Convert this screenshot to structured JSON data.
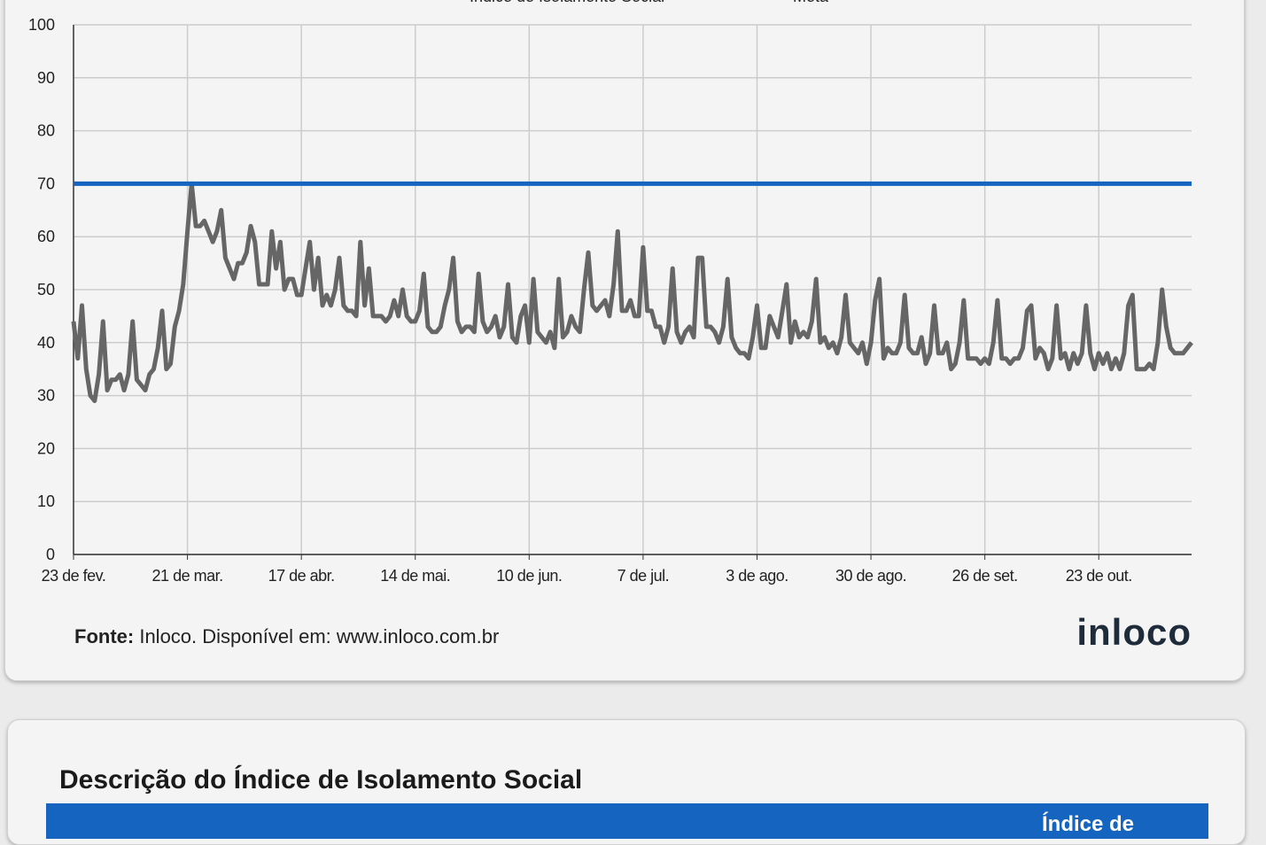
{
  "chart_data": {
    "type": "line",
    "categories": [
      "23 de fev.",
      null,
      null,
      null,
      null,
      null,
      null,
      null,
      null,
      null,
      null,
      null,
      null,
      null,
      null,
      null,
      null,
      null,
      null,
      null,
      null,
      null,
      null,
      null,
      null,
      null,
      null,
      "21 de mar.",
      null,
      null,
      null,
      null,
      null,
      null,
      null,
      null,
      null,
      null,
      null,
      null,
      null,
      null,
      null,
      null,
      null,
      null,
      null,
      null,
      null,
      null,
      null,
      null,
      null,
      null,
      "17 de abr.",
      null,
      null,
      null,
      null,
      null,
      null,
      null,
      null,
      null,
      null,
      null,
      null,
      null,
      null,
      null,
      null,
      null,
      null,
      null,
      null,
      null,
      null,
      null,
      null,
      null,
      null,
      "14 de mai.",
      null,
      null,
      null,
      null,
      null,
      null,
      null,
      null,
      null,
      null,
      null,
      null,
      null,
      null,
      null,
      null,
      null,
      null,
      null,
      null,
      null,
      null,
      null,
      null,
      null,
      null,
      "10 de jun.",
      null,
      null,
      null,
      null,
      null,
      null,
      null,
      null,
      null,
      null,
      null,
      null,
      null,
      null,
      null,
      null,
      null,
      null,
      null,
      null,
      null,
      null,
      null,
      null,
      null,
      null,
      "7 de jul.",
      null,
      null,
      null,
      null,
      null,
      null,
      null,
      null,
      null,
      null,
      null,
      null,
      null,
      null,
      null,
      null,
      null,
      null,
      null,
      null,
      null,
      null,
      null,
      null,
      null,
      null,
      "3 de ago.",
      null,
      null,
      null,
      null,
      null,
      null,
      null,
      null,
      null,
      null,
      null,
      null,
      null,
      null,
      null,
      null,
      null,
      null,
      null,
      null,
      null,
      null,
      null,
      null,
      null,
      null,
      "30 de ago.",
      null,
      null,
      null,
      null,
      null,
      null,
      null,
      null,
      null,
      null,
      null,
      null,
      null,
      null,
      null,
      null,
      null,
      null,
      null,
      null,
      null,
      null,
      null,
      null,
      null,
      null,
      "26 de set.",
      null,
      null,
      null,
      null,
      null,
      null,
      null,
      null,
      null,
      null,
      null,
      null,
      null,
      null,
      null,
      null,
      null,
      null,
      null,
      null,
      null,
      null,
      null,
      null,
      null,
      null,
      "23 de out.",
      null,
      null,
      null,
      null,
      null,
      null,
      null,
      null,
      null,
      null,
      null,
      null,
      null,
      null,
      null,
      null,
      null,
      null,
      null,
      null,
      null,
      null
    ],
    "series": [
      {
        "name": "Índice de Isolamento Social",
        "color": "#666666",
        "values": [
          44,
          37,
          47,
          35,
          30,
          29,
          34,
          44,
          31,
          33,
          33,
          34,
          31,
          34,
          44,
          33,
          32,
          31,
          34,
          35,
          39,
          46,
          35,
          36,
          43,
          46,
          51,
          61,
          70,
          62,
          62,
          63,
          61,
          59,
          61,
          65,
          56,
          54,
          52,
          55,
          55,
          57,
          62,
          59,
          51,
          51,
          51,
          61,
          54,
          59,
          50,
          52,
          52,
          49,
          49,
          54,
          59,
          50,
          56,
          47,
          49,
          47,
          50,
          56,
          47,
          46,
          46,
          45,
          59,
          47,
          54,
          45,
          45,
          45,
          44,
          45,
          48,
          45,
          50,
          45,
          44,
          44,
          46,
          53,
          43,
          42,
          42,
          43,
          47,
          50,
          56,
          44,
          42,
          43,
          43,
          42,
          53,
          44,
          42,
          43,
          45,
          41,
          43,
          51,
          41,
          40,
          45,
          47,
          40,
          52,
          42,
          41,
          40,
          42,
          39,
          52,
          41,
          42,
          45,
          43,
          42,
          50,
          57,
          47,
          46,
          47,
          48,
          45,
          51,
          61,
          46,
          46,
          48,
          45,
          45,
          58,
          46,
          46,
          43,
          43,
          40,
          43,
          54,
          42,
          40,
          42,
          43,
          41,
          56,
          56,
          43,
          43,
          42,
          40,
          43,
          52,
          41,
          39,
          38,
          38,
          37,
          41,
          47,
          39,
          39,
          45,
          43,
          41,
          46,
          51,
          40,
          44,
          41,
          42,
          41,
          44,
          52,
          40,
          41,
          39,
          40,
          38,
          41,
          49,
          40,
          39,
          38,
          40,
          36,
          40,
          48,
          52,
          37,
          39,
          38,
          38,
          40,
          49,
          39,
          38,
          38,
          41,
          36,
          38,
          47,
          38,
          38,
          40,
          35,
          36,
          40,
          48,
          37,
          37,
          37,
          36,
          37,
          36,
          40,
          48,
          37,
          37,
          36,
          37,
          37,
          39,
          46,
          47,
          37,
          39,
          38,
          35,
          37,
          47,
          37,
          38,
          35,
          38,
          36,
          38,
          47,
          38,
          35,
          38,
          36,
          38,
          35,
          37,
          35,
          38,
          47,
          49,
          35,
          35,
          35,
          36,
          35,
          40,
          50,
          43,
          39,
          38,
          38,
          38,
          39,
          40
        ]
      },
      {
        "name": "Meta",
        "color": "#1565c0",
        "values": [
          70,
          70,
          70,
          70,
          70,
          70,
          70,
          70,
          70,
          70,
          70,
          70,
          70,
          70,
          70,
          70,
          70,
          70,
          70,
          70,
          70,
          70,
          70,
          70,
          70,
          70,
          70,
          70,
          70,
          70,
          70,
          70,
          70,
          70,
          70,
          70,
          70,
          70,
          70,
          70,
          70,
          70,
          70,
          70,
          70,
          70,
          70,
          70,
          70,
          70,
          70,
          70,
          70,
          70,
          70,
          70,
          70,
          70,
          70,
          70,
          70,
          70,
          70,
          70,
          70,
          70,
          70,
          70,
          70,
          70,
          70,
          70,
          70,
          70,
          70,
          70,
          70,
          70,
          70,
          70,
          70,
          70,
          70,
          70,
          70,
          70,
          70,
          70,
          70,
          70,
          70,
          70,
          70,
          70,
          70,
          70,
          70,
          70,
          70,
          70,
          70,
          70,
          70,
          70,
          70,
          70,
          70,
          70,
          70,
          70,
          70,
          70,
          70,
          70,
          70,
          70,
          70,
          70,
          70,
          70,
          70,
          70,
          70,
          70,
          70,
          70,
          70,
          70,
          70,
          70,
          70,
          70,
          70,
          70,
          70,
          70,
          70,
          70,
          70,
          70,
          70,
          70,
          70,
          70,
          70,
          70,
          70,
          70,
          70,
          70,
          70,
          70,
          70,
          70,
          70,
          70,
          70,
          70,
          70,
          70,
          70,
          70,
          70,
          70,
          70,
          70,
          70,
          70,
          70,
          70,
          70,
          70,
          70,
          70,
          70,
          70,
          70,
          70,
          70,
          70,
          70,
          70,
          70,
          70,
          70,
          70,
          70,
          70,
          70,
          70,
          70,
          70,
          70,
          70,
          70,
          70,
          70,
          70,
          70,
          70,
          70,
          70,
          70,
          70,
          70,
          70,
          70,
          70,
          70,
          70,
          70,
          70,
          70,
          70,
          70,
          70,
          70,
          70,
          70,
          70,
          70,
          70,
          70,
          70,
          70,
          70,
          70,
          70,
          70,
          70,
          70,
          70,
          70,
          70,
          70,
          70,
          70,
          70,
          70,
          70,
          70,
          70,
          70,
          70,
          70,
          70,
          70,
          70,
          70,
          70,
          70,
          70,
          70,
          70,
          70,
          70,
          70,
          70,
          70,
          70,
          70,
          70,
          70,
          70,
          70,
          70
        ]
      }
    ],
    "ylim": [
      0,
      100
    ],
    "yticks": [
      0,
      10,
      20,
      30,
      40,
      50,
      60,
      70,
      80,
      90,
      100
    ],
    "grid": true
  },
  "source": {
    "label": "Fonte:",
    "text": "Inloco. Disponível em: www.inloco.com.br"
  },
  "logo": "inloco",
  "section": {
    "title": "Descrição do Índice de Isolamento Social",
    "table_header": "Índice de"
  }
}
